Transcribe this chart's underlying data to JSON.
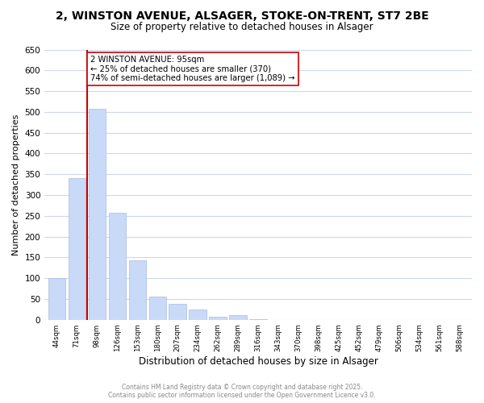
{
  "title": "2, WINSTON AVENUE, ALSAGER, STOKE-ON-TRENT, ST7 2BE",
  "subtitle": "Size of property relative to detached houses in Alsager",
  "xlabel": "Distribution of detached houses by size in Alsager",
  "ylabel": "Number of detached properties",
  "bar_values": [
    100,
    340,
    507,
    258,
    142,
    55,
    38,
    24,
    8,
    12,
    2,
    0,
    0,
    0,
    0,
    0,
    0,
    0,
    0,
    0,
    0
  ],
  "bar_labels": [
    "44sqm",
    "71sqm",
    "98sqm",
    "126sqm",
    "153sqm",
    "180sqm",
    "207sqm",
    "234sqm",
    "262sqm",
    "289sqm",
    "316sqm",
    "343sqm",
    "370sqm",
    "398sqm",
    "425sqm",
    "452sqm",
    "479sqm",
    "506sqm",
    "534sqm",
    "561sqm",
    "588sqm"
  ],
  "bar_color": "#c9daf8",
  "bar_edge_color": "#a4bce0",
  "vline_color": "#cc0000",
  "vline_x_index": 2,
  "annotation_text": "2 WINSTON AVENUE: 95sqm\n← 25% of detached houses are smaller (370)\n74% of semi-detached houses are larger (1,089) →",
  "annotation_box_color": "#ffffff",
  "annotation_box_edge": "#cc0000",
  "ylim": [
    0,
    650
  ],
  "yticks": [
    0,
    50,
    100,
    150,
    200,
    250,
    300,
    350,
    400,
    450,
    500,
    550,
    600,
    650
  ],
  "footnote_line1": "Contains HM Land Registry data © Crown copyright and database right 2025.",
  "footnote_line2": "Contains public sector information licensed under the Open Government Licence v3.0.",
  "footnote_color": "#888888",
  "background_color": "#ffffff",
  "grid_color": "#ccd8ee"
}
